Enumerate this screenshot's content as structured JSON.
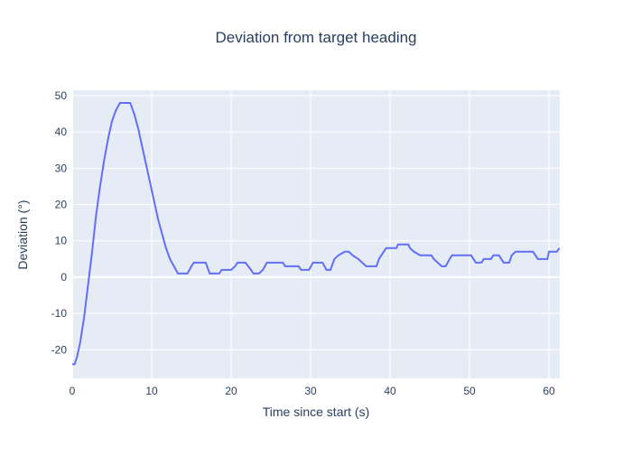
{
  "chart_data": {
    "type": "line",
    "title": "Deviation from target heading",
    "x_label": "Time since start (s)",
    "y_label": "Deviation (°)",
    "color": "#636efa",
    "x": [
      0,
      0.3,
      0.6,
      1,
      1.5,
      2,
      2.5,
      3,
      3.5,
      4,
      4.5,
      5,
      5.5,
      6,
      7.3,
      7.8,
      8.3,
      8.8,
      9.3,
      9.8,
      10.3,
      10.8,
      11.3,
      11.8,
      12.3,
      12.8,
      13.3,
      14.5,
      15,
      15.3,
      16.8,
      17.3,
      18.5,
      18.8,
      20,
      20.5,
      20.8,
      21.8,
      22.5,
      22.8,
      23.5,
      24,
      24.5,
      26.5,
      26.8,
      28.5,
      28.8,
      29.8,
      30.3,
      31.5,
      32,
      32.5,
      33,
      33.5,
      34.3,
      34.8,
      35.3,
      36,
      36.5,
      37,
      38.3,
      38.6,
      39.2,
      39.5,
      40.8,
      41,
      42.3,
      42.5,
      43,
      43.8,
      45.2,
      45.5,
      46,
      46.5,
      47,
      47.5,
      47.8,
      50.2,
      50.5,
      50.8,
      51.5,
      51.8,
      52.7,
      53,
      53.7,
      54,
      54.3,
      55,
      55.3,
      55.8,
      58,
      58.3,
      58.6,
      59.8,
      60,
      61,
      61.3
    ],
    "values": [
      -24,
      -24,
      -22,
      -18,
      -11,
      -2,
      7,
      17,
      25,
      32,
      38,
      43,
      46,
      48,
      48,
      45,
      41,
      36,
      31,
      26,
      21,
      16,
      12,
      8,
      5,
      3,
      1,
      1,
      3,
      4,
      4,
      1,
      1,
      2,
      2,
      3,
      4,
      4,
      2,
      1,
      1,
      2,
      4,
      4,
      3,
      3,
      2,
      2,
      4,
      4,
      2,
      2,
      5,
      6,
      7,
      7,
      6,
      5,
      4,
      3,
      3,
      5,
      7,
      8,
      8,
      9,
      9,
      8,
      7,
      6,
      6,
      5,
      4,
      3,
      3,
      5,
      6,
      6,
      5,
      4,
      4,
      5,
      5,
      6,
      6,
      5,
      4,
      4,
      6,
      7,
      7,
      6,
      5,
      5,
      7,
      7,
      8
    ],
    "xlim": [
      0,
      61.36
    ],
    "ylim": [
      -27.9,
      51.5
    ],
    "xticks": [
      0,
      10,
      20,
      30,
      40,
      50,
      60
    ],
    "yticks": [
      -20,
      -10,
      0,
      10,
      20,
      30,
      40,
      50
    ],
    "grid": true
  }
}
